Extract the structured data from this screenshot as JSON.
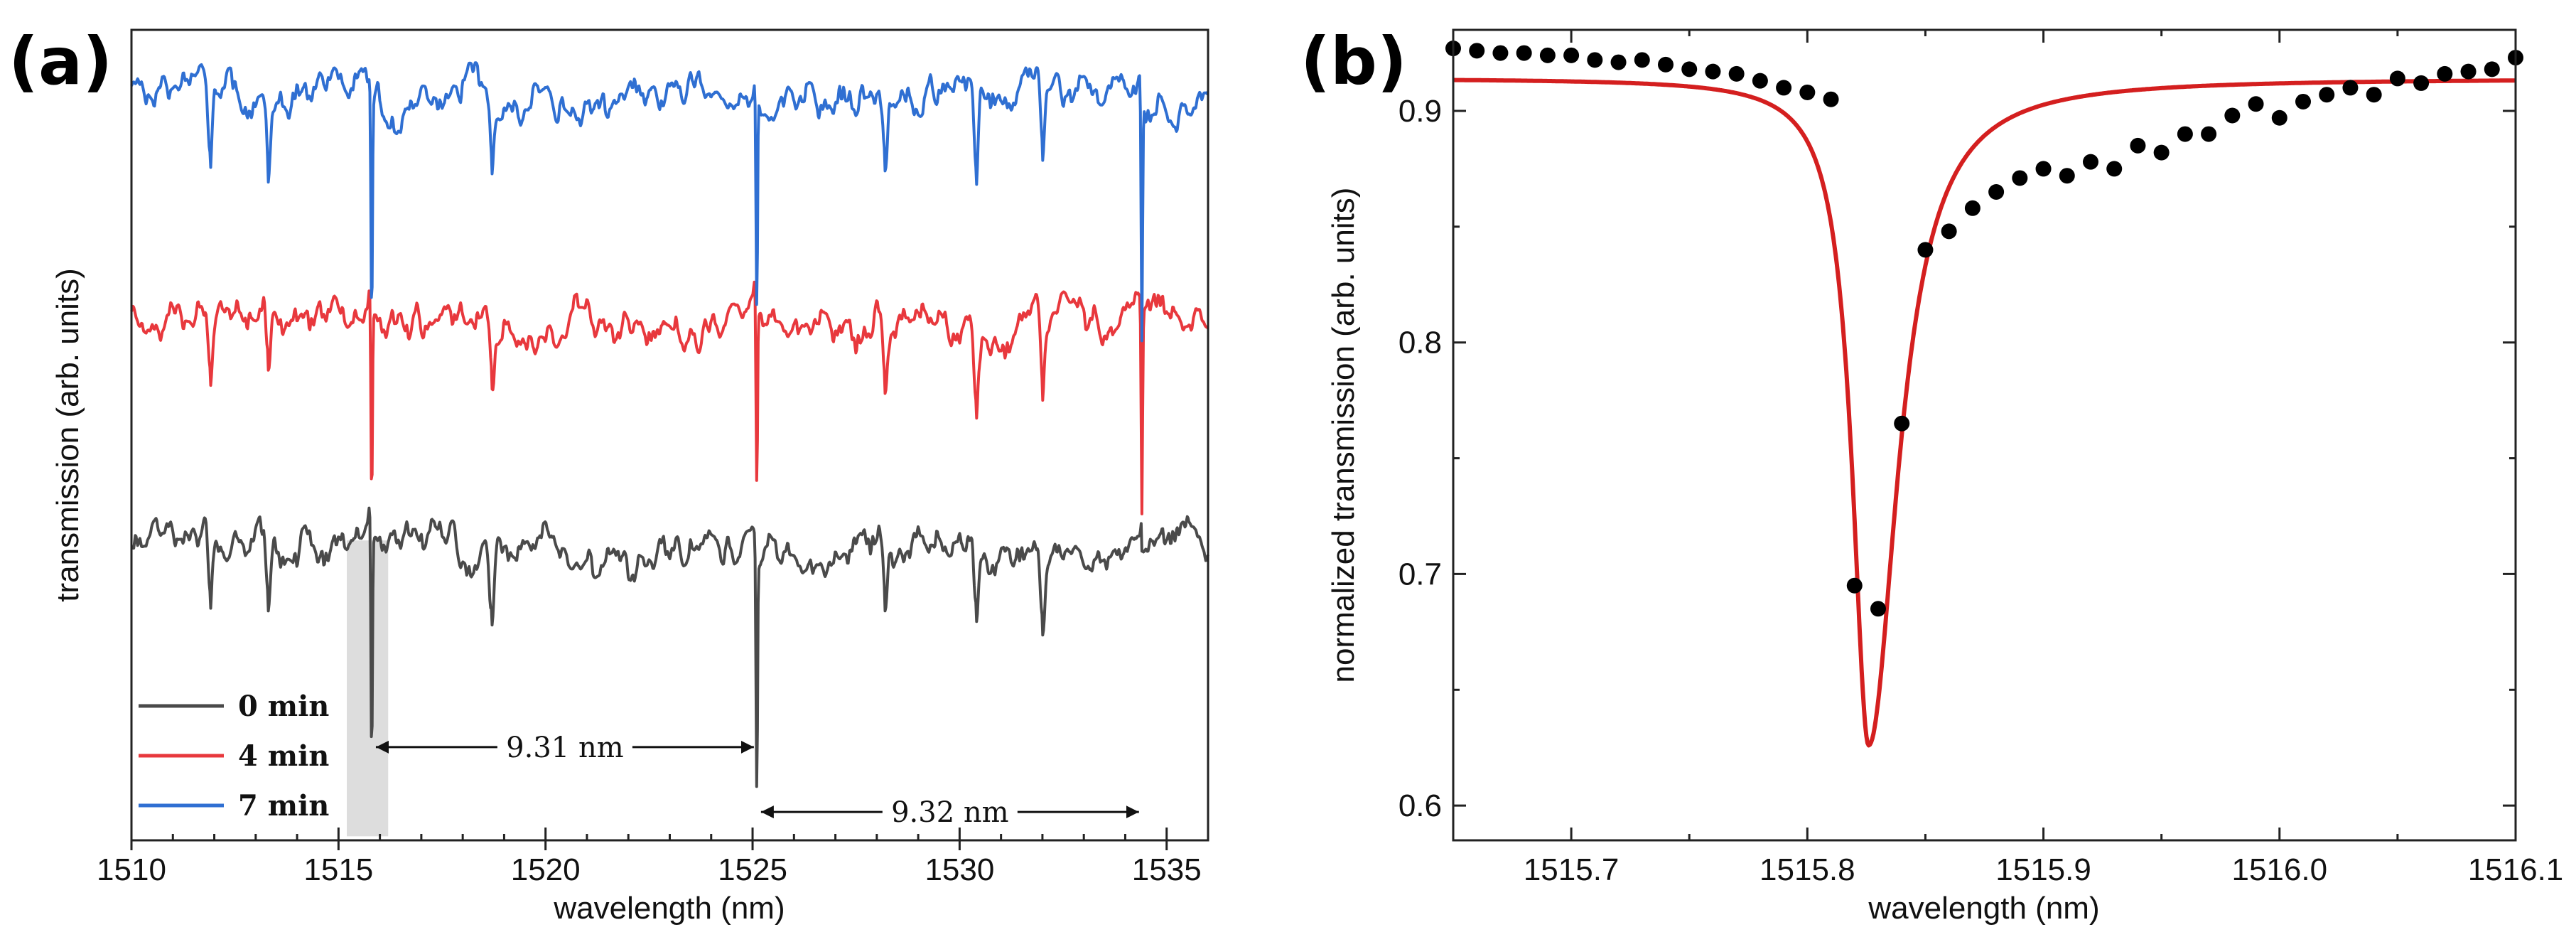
{
  "chart_data": [
    {
      "panel": "(a)",
      "type": "line",
      "xlabel": "wavelength (nm)",
      "ylabel": "transmission (arb. units)",
      "xlim": [
        1510,
        1536
      ],
      "xticks": [
        "1510",
        "1515",
        "1520",
        "1525",
        "1530",
        "1535"
      ],
      "ylim": [
        0,
        100
      ],
      "yticks_shown": false,
      "grid": false,
      "legend_position": "bottom-left",
      "fsr_resonances_nm": [
        1515.8,
        1525.1,
        1534.4
      ],
      "narrow_dips_nm": [
        1511.9,
        1513.3,
        1518.7,
        1528.2,
        1530.4,
        1532.0
      ],
      "series": [
        {
          "name": "0 min",
          "color": "#4a4a4a",
          "baseline": 36,
          "noise_amplitude": 4,
          "resonance_depth": [
            30,
            31,
            0
          ]
        },
        {
          "name": "4 min",
          "color": "#e8383d",
          "baseline": 64,
          "noise_amplitude": 4,
          "resonance_depth": [
            25,
            25,
            25
          ]
        },
        {
          "name": "7 min",
          "color": "#2f6fd2",
          "baseline": 92,
          "noise_amplitude": 4,
          "resonance_depth": [
            28,
            28,
            28
          ]
        }
      ],
      "annotations": [
        {
          "text": "9.31 nm",
          "from_nm": 1515.8,
          "to_nm": 1525.1
        },
        {
          "text": "9.32 nm",
          "from_nm": 1525.1,
          "to_nm": 1534.4
        }
      ],
      "highlight_region_nm": [
        1515.2,
        1516.2
      ]
    },
    {
      "panel": "(b)",
      "type": "scatter",
      "xlabel": "wavelength (nm)",
      "ylabel": "normalized transmission (arb. units)",
      "xlim": [
        1515.65,
        1516.1
      ],
      "ylim": [
        0.585,
        0.935
      ],
      "xticks": [
        "1515.7",
        "1515.8",
        "1515.9",
        "1516.0",
        "1516.1"
      ],
      "yticks": [
        "0.6",
        "0.7",
        "0.8",
        "0.9"
      ],
      "grid": false,
      "points_x": [
        1515.65,
        1515.66,
        1515.67,
        1515.68,
        1515.69,
        1515.7,
        1515.71,
        1515.72,
        1515.73,
        1515.74,
        1515.75,
        1515.76,
        1515.77,
        1515.78,
        1515.79,
        1515.8,
        1515.81,
        1515.82,
        1515.83,
        1515.84,
        1515.85,
        1515.86,
        1515.87,
        1515.88,
        1515.89,
        1515.9,
        1515.91,
        1515.92,
        1515.93,
        1515.94,
        1515.95,
        1515.96,
        1515.97,
        1515.98,
        1515.99,
        1516.0,
        1516.01,
        1516.02,
        1516.03,
        1516.04,
        1516.05,
        1516.06,
        1516.07,
        1516.08,
        1516.09,
        1516.1
      ],
      "points_y": [
        0.927,
        0.926,
        0.925,
        0.925,
        0.924,
        0.924,
        0.922,
        0.921,
        0.922,
        0.92,
        0.918,
        0.917,
        0.916,
        0.913,
        0.91,
        0.908,
        0.905,
        0.695,
        0.685,
        0.765,
        0.84,
        0.848,
        0.858,
        0.865,
        0.871,
        0.875,
        0.872,
        0.878,
        0.875,
        0.885,
        0.882,
        0.89,
        0.89,
        0.898,
        0.903,
        0.897,
        0.904,
        0.907,
        0.91,
        0.907,
        0.914,
        0.912,
        0.916,
        0.917,
        0.918,
        0.923
      ],
      "fit": {
        "model": "lorentzian",
        "color": "#d41f1f",
        "baseline": 0.914,
        "center_nm": 1515.826,
        "min_value": 0.626,
        "fwhm_nm": 0.024
      }
    }
  ]
}
